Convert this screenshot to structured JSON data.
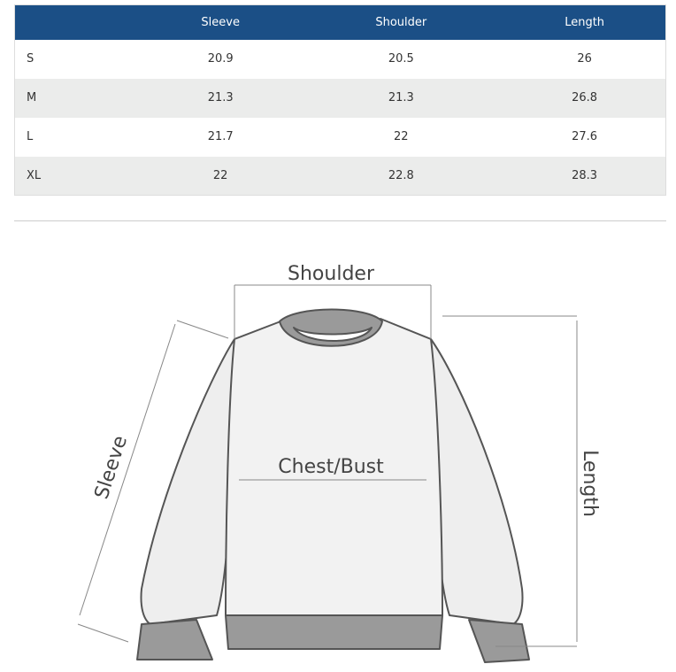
{
  "size_table": {
    "headers": [
      "",
      "Sleeve",
      "Shoulder",
      "Length"
    ],
    "rows": [
      [
        "S",
        "20.9",
        "20.5",
        "26"
      ],
      [
        "M",
        "21.3",
        "21.3",
        "26.8"
      ],
      [
        "L",
        "21.7",
        "22",
        "27.6"
      ],
      [
        "XL",
        "22",
        "22.8",
        "28.3"
      ]
    ],
    "header_color": "#1b4f86"
  },
  "diagram": {
    "labels": {
      "shoulder": "Shoulder",
      "sleeve": "Sleeve",
      "chest": "Chest/Bust",
      "length": "Length"
    }
  }
}
